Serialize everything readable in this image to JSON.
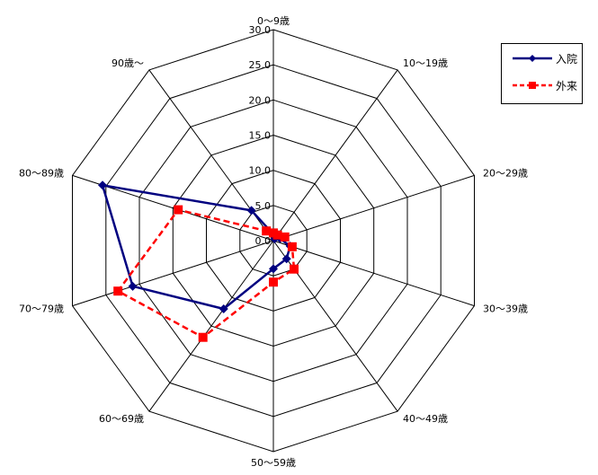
{
  "chart_data": {
    "type": "radar",
    "categories": [
      "0～9歳",
      "10～19歳",
      "20～29歳",
      "30～39歳",
      "40～49歳",
      "50～59歳",
      "60～69歳",
      "70～79歳",
      "80～89歳",
      "90歳～"
    ],
    "rlim": [
      0,
      30
    ],
    "ticks": [
      "0.0",
      "5.0",
      "10.0",
      "15.0",
      "20.0",
      "25.0",
      "30.0"
    ],
    "tick_values": [
      0,
      5,
      10,
      15,
      20,
      25,
      30
    ],
    "grid": true,
    "legend_position": "top-right",
    "series": [
      {
        "name": "入院",
        "color": "#000080",
        "line_style": "solid",
        "marker": "diamond",
        "values": [
          0.9,
          0.3,
          1.0,
          2.5,
          3.2,
          4.0,
          12.0,
          21.0,
          25.5,
          5.3
        ]
      },
      {
        "name": "外来",
        "color": "#ff0000",
        "line_style": "dashed",
        "marker": "square",
        "values": [
          1.1,
          1.0,
          1.7,
          2.8,
          5.0,
          5.9,
          17.0,
          23.2,
          14.2,
          1.7
        ]
      }
    ]
  }
}
